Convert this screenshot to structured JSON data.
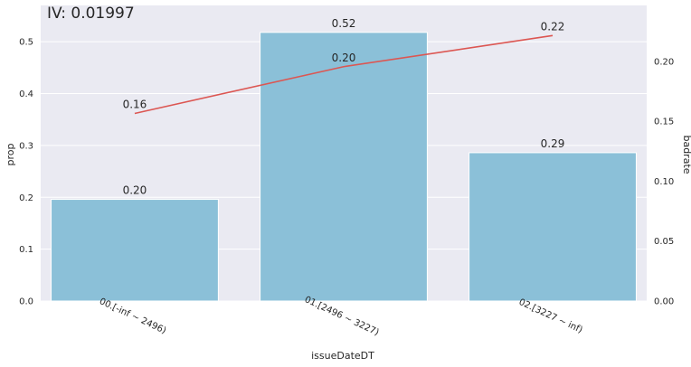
{
  "chart_data": {
    "type": "bar",
    "title": "IV: 0.01997",
    "xlabel": "issueDateDT",
    "ylabel": "prop",
    "y2label": "badrate",
    "categories": [
      "00.[-inf ~ 2496)",
      "01.[2496 ~ 3227)",
      "02.[3227 ~ inf)"
    ],
    "bar_color": "#8bc0d8",
    "line_color": "#dc5652",
    "background_color": "#eaeaf2",
    "grid": true,
    "ylim": [
      0,
      0.57
    ],
    "y2lim": [
      0,
      0.2466
    ],
    "yticks": [
      "0.0",
      "0.1",
      "0.2",
      "0.3",
      "0.4",
      "0.5"
    ],
    "y2ticks": [
      "0.00",
      "0.05",
      "0.10",
      "0.15",
      "0.20"
    ],
    "series": [
      {
        "kind": "bar",
        "axis": "left",
        "values": [
          0.196,
          0.518,
          0.286
        ],
        "labels": [
          "0.20",
          "0.52",
          "0.29"
        ]
      },
      {
        "kind": "line",
        "axis": "right",
        "values": [
          0.1565,
          0.1955,
          0.2215
        ],
        "labels": [
          "0.16",
          "0.20",
          "0.22"
        ]
      }
    ]
  }
}
